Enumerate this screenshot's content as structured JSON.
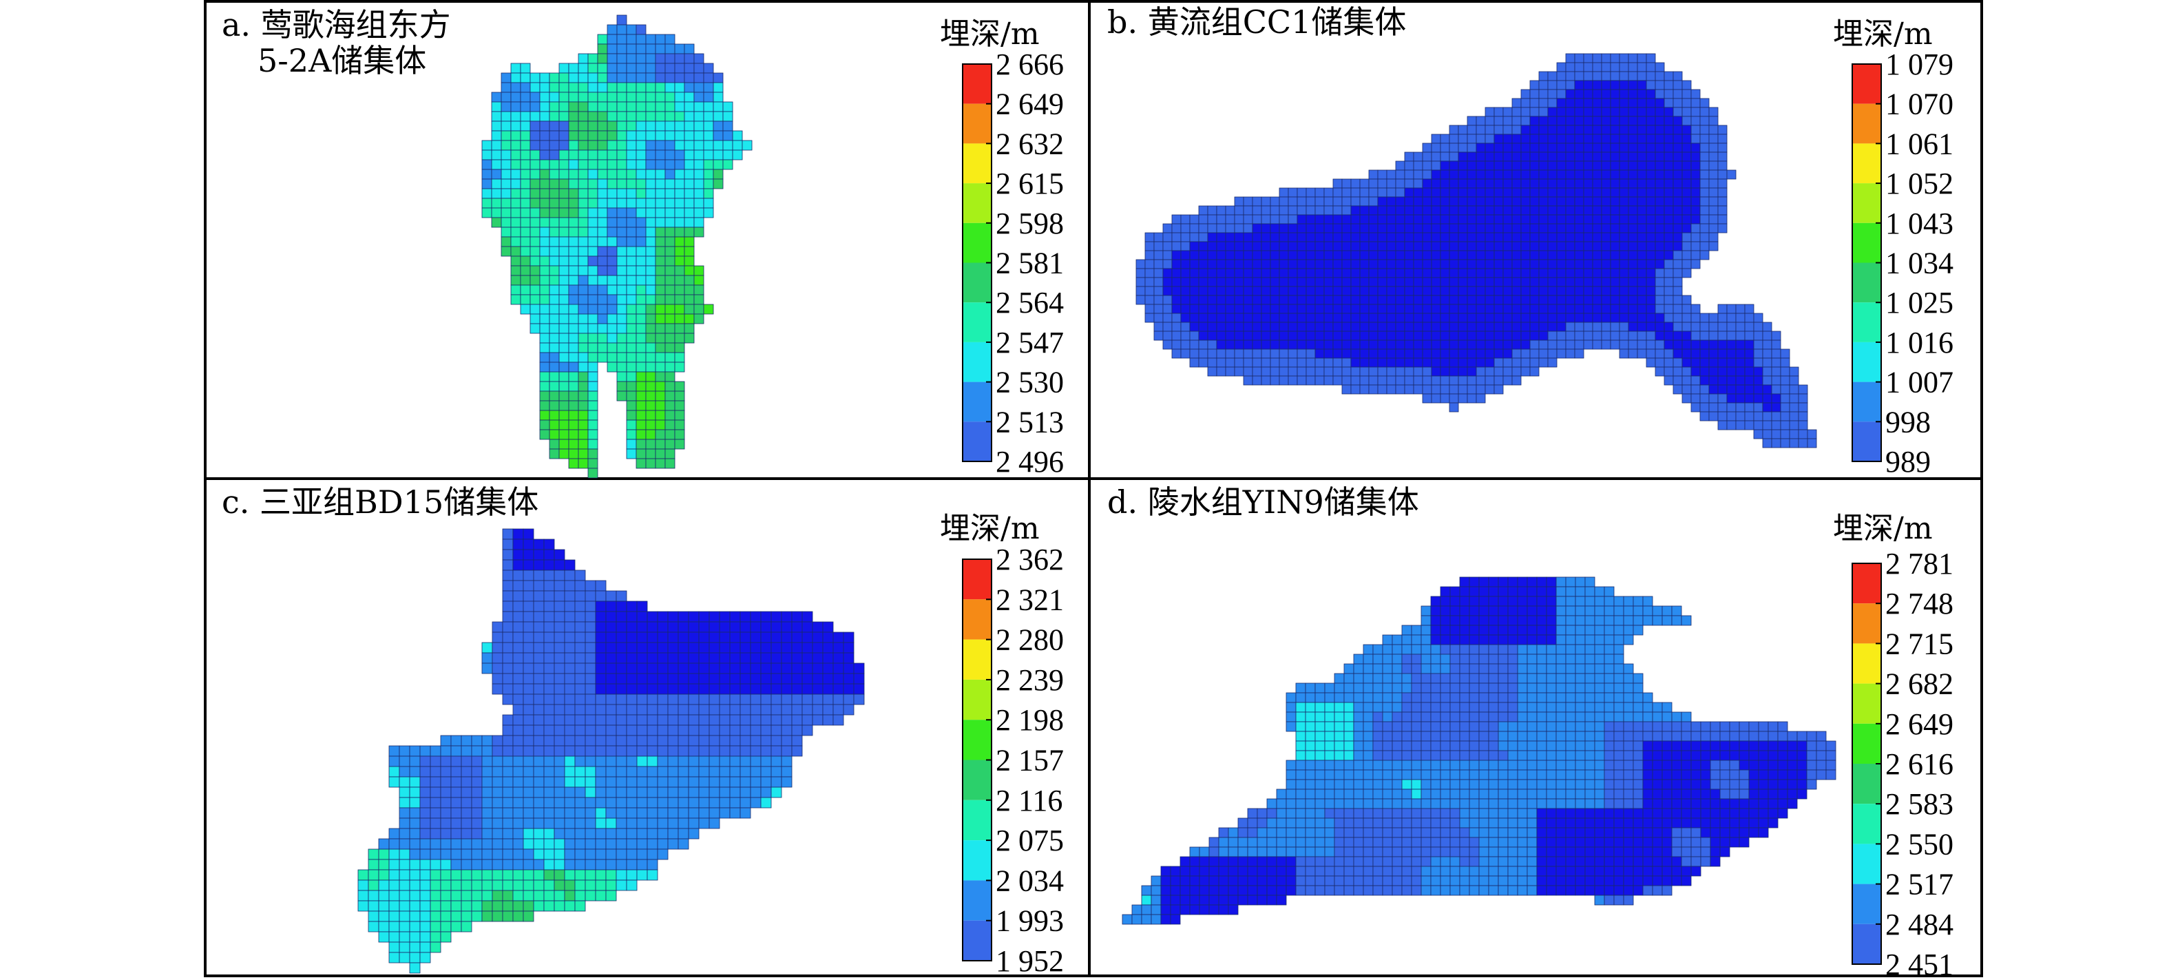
{
  "chart_data": [
    {
      "type": "heatmap",
      "title_lines": [
        "a. 莺歌海组东方",
        "5-2A储集体"
      ],
      "legend_title": "埋深/m",
      "legend_ticks": [
        "2 666",
        "2 649",
        "2 632",
        "2 615",
        "2 598",
        "2 581",
        "2 564",
        "2 547",
        "2 530",
        "2 513",
        "2 496"
      ],
      "value_range": [
        2496,
        2666
      ],
      "legend_colors": [
        "#f22a1e",
        "#f58a16",
        "#f8ec17",
        "#a7f018",
        "#38ea1e",
        "#2bd06b",
        "#1df0b0",
        "#1de8ee",
        "#2a8cf0",
        "#3868e8",
        "#1313e8"
      ],
      "shape": "blob-a"
    },
    {
      "type": "heatmap",
      "title_lines": [
        "b. 黄流组CC1储集体"
      ],
      "legend_title": "埋深/m",
      "legend_ticks": [
        "1 079",
        "1 070",
        "1 061",
        "1 052",
        "1 043",
        "1 034",
        "1 025",
        "1 016",
        "1 007",
        "998",
        "989"
      ],
      "value_range": [
        989,
        1079
      ],
      "legend_colors": [
        "#f22a1e",
        "#f58a16",
        "#f8ec17",
        "#a7f018",
        "#38ea1e",
        "#2bd06b",
        "#1df0b0",
        "#1de8ee",
        "#2a8cf0",
        "#3868e8",
        "#1313e8"
      ],
      "shape": "blob-b"
    },
    {
      "type": "heatmap",
      "title_lines": [
        "c. 三亚组BD15储集体"
      ],
      "legend_title": "埋深/m",
      "legend_ticks": [
        "2 362",
        "2 321",
        "2 280",
        "2 239",
        "2 198",
        "2 157",
        "2 116",
        "2 075",
        "2 034",
        "1 993",
        "1 952"
      ],
      "value_range": [
        1952,
        2362
      ],
      "legend_colors": [
        "#f22a1e",
        "#f58a16",
        "#f8ec17",
        "#a7f018",
        "#38ea1e",
        "#2bd06b",
        "#1df0b0",
        "#1de8ee",
        "#2a8cf0",
        "#3868e8",
        "#1313e8"
      ],
      "shape": "blob-c"
    },
    {
      "type": "heatmap",
      "title_lines": [
        "d. 陵水组YIN9储集体"
      ],
      "legend_title": "埋深/m",
      "legend_ticks": [
        "2 781",
        "2 748",
        "2 715",
        "2 682",
        "2 649",
        "2 616",
        "2 583",
        "2 550",
        "2 517",
        "2 484",
        "2 451"
      ],
      "value_range": [
        2451,
        2781
      ],
      "legend_colors": [
        "#f22a1e",
        "#f58a16",
        "#f8ec17",
        "#a7f018",
        "#38ea1e",
        "#2bd06b",
        "#1df0b0",
        "#1de8ee",
        "#2a8cf0",
        "#3868e8",
        "#1313e8"
      ],
      "shape": "blob-d"
    }
  ]
}
